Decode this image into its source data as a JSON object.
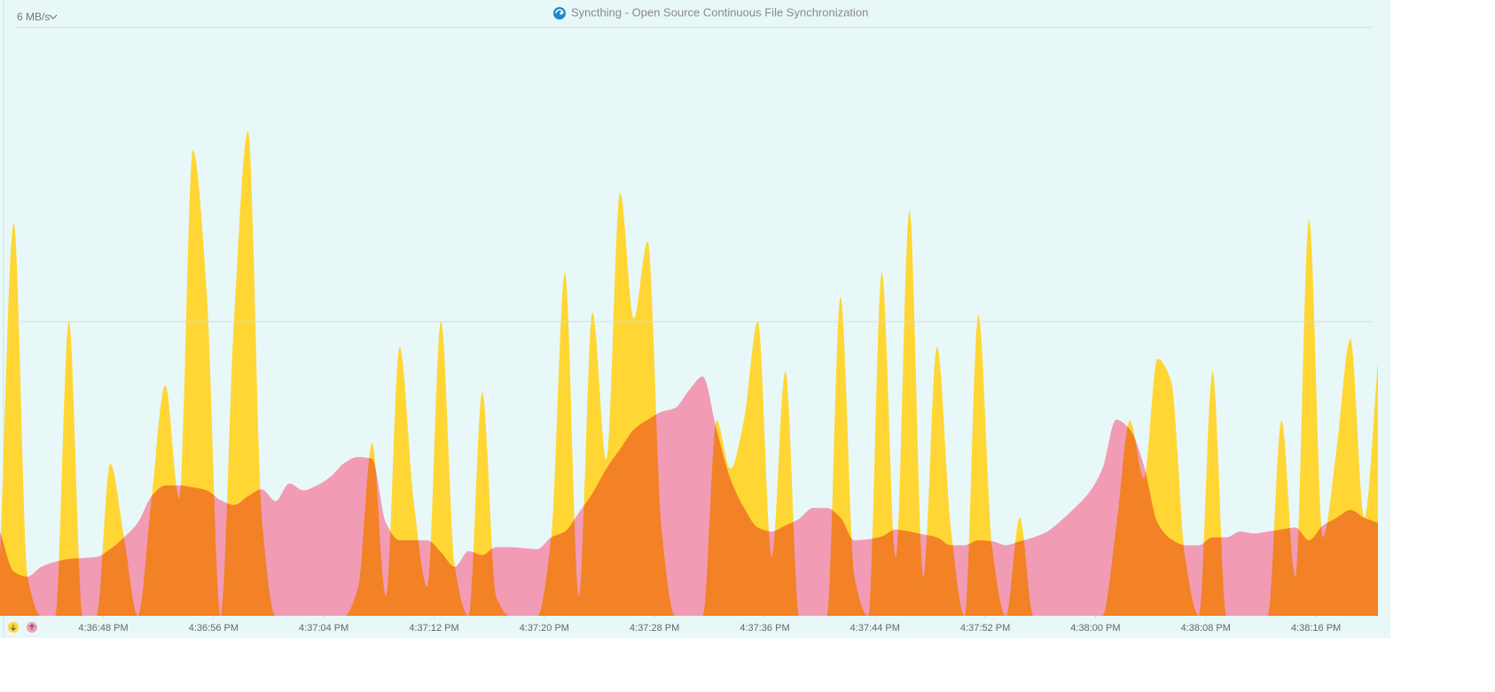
{
  "chart_data": {
    "type": "area",
    "title": "Syncthing - Open Source Continuous File Synchronization",
    "y_scale_label": "6 MB/s",
    "ylim": [
      0,
      6
    ],
    "grid_lines": [
      3,
      6
    ],
    "xlim": [
      59800.5,
      59901.4
    ],
    "xticks": [
      {
        "value": 59808,
        "label": "4:36:48 PM"
      },
      {
        "value": 59816,
        "label": "4:36:56 PM"
      },
      {
        "value": 59824,
        "label": "4:37:04 PM"
      },
      {
        "value": 59832,
        "label": "4:37:12 PM"
      },
      {
        "value": 59840,
        "label": "4:37:20 PM"
      },
      {
        "value": 59848,
        "label": "4:37:28 PM"
      },
      {
        "value": 59856,
        "label": "4:37:36 PM"
      },
      {
        "value": 59864,
        "label": "4:37:44 PM"
      },
      {
        "value": 59872,
        "label": "4:37:52 PM"
      },
      {
        "value": 59880,
        "label": "4:38:00 PM"
      },
      {
        "value": 59888,
        "label": "4:38:08 PM"
      },
      {
        "value": 59896,
        "label": "4:38:16 PM"
      }
    ],
    "x": [
      59800.5,
      59801.5,
      59802.5,
      59803.5,
      59804.5,
      59805.5,
      59806.5,
      59807.5,
      59808.5,
      59809.5,
      59810.5,
      59811.5,
      59812.5,
      59813.5,
      59814.5,
      59815.5,
      59816.5,
      59817.5,
      59818.5,
      59819.5,
      59820.5,
      59821.5,
      59822.5,
      59823.5,
      59824.5,
      59825.5,
      59826.5,
      59827.5,
      59828.5,
      59829.5,
      59830.5,
      59831.5,
      59832.5,
      59833.5,
      59834.5,
      59835.5,
      59836.5,
      59837.5,
      59838.5,
      59839.5,
      59840.5,
      59841.5,
      59842.5,
      59843.5,
      59844.5,
      59845.5,
      59846.5,
      59847.5,
      59848.5,
      59849.5,
      59850.5,
      59851.5,
      59852.5,
      59853.5,
      59854.5,
      59855.5,
      59856.5,
      59857.5,
      59858.5,
      59859.5,
      59860.5,
      59861.5,
      59862.5,
      59863.5,
      59864.5,
      59865.5,
      59866.5,
      59867.5,
      59868.5,
      59869.5,
      59870.5,
      59871.5,
      59872.5,
      59873.5,
      59874.5,
      59875.5,
      59876.5,
      59877.5,
      59878.5,
      59879.5,
      59880.5,
      59881.5,
      59882.5,
      59883.5,
      59884.5,
      59885.5,
      59886.5,
      59887.5,
      59888.5,
      59889.5,
      59890.5,
      59891.5,
      59892.5,
      59893.5,
      59894.5,
      59895.5,
      59896.5,
      59897.5,
      59898.5,
      59899.5,
      59900.5
    ],
    "series": [
      {
        "color": "#f29bb5",
        "values": [
          0.86,
          0.45,
          0.4,
          0.5,
          0.55,
          0.58,
          0.59,
          0.6,
          0.68,
          0.8,
          0.95,
          1.22,
          1.33,
          1.33,
          1.31,
          1.28,
          1.18,
          1.13,
          1.22,
          1.29,
          1.17,
          1.35,
          1.28,
          1.33,
          1.42,
          1.56,
          1.62,
          1.6,
          0.95,
          0.77,
          0.77,
          0.77,
          0.65,
          0.5,
          0.66,
          0.62,
          0.7,
          0.7,
          0.69,
          0.68,
          0.8,
          0.86,
          1.05,
          1.25,
          1.5,
          1.7,
          1.9,
          2.0,
          2.08,
          2.12,
          2.3,
          2.44,
          1.9,
          1.4,
          1.1,
          0.9,
          0.86,
          0.92,
          0.99,
          1.1,
          1.1,
          1.0,
          0.77,
          0.78,
          0.81,
          0.88,
          0.86,
          0.83,
          0.8,
          0.72,
          0.72,
          0.77,
          0.76,
          0.72,
          0.76,
          0.8,
          0.86,
          0.97,
          1.1,
          1.25,
          1.5,
          2.0,
          1.9,
          1.54,
          0.95,
          0.78,
          0.72,
          0.72,
          0.8,
          0.8,
          0.86,
          0.84,
          0.86,
          0.88,
          0.9,
          0.77,
          0.92,
          1.0,
          1.08,
          1.0,
          0.95
        ]
      },
      {
        "color": "#ffd633",
        "values": [
          0.6,
          4.0,
          0.4,
          0,
          0,
          3.0,
          0,
          0,
          1.55,
          0.8,
          0,
          1.2,
          2.35,
          1.2,
          4.75,
          3.3,
          0,
          3.07,
          4.94,
          1.0,
          0,
          0,
          0,
          0,
          0,
          0,
          0.3,
          1.76,
          0.2,
          2.74,
          1.2,
          0.3,
          3.0,
          0.5,
          0,
          2.28,
          0.2,
          0,
          0,
          0,
          0.8,
          3.5,
          0.2,
          3.09,
          1.6,
          4.31,
          3.03,
          3.82,
          0.9,
          0,
          0,
          0,
          1.99,
          1.5,
          2.0,
          3.0,
          0.6,
          2.49,
          0,
          0,
          0,
          3.25,
          0.4,
          0,
          3.5,
          0.6,
          4.13,
          0.4,
          2.74,
          0.9,
          0,
          3.07,
          0.7,
          0,
          1.0,
          0,
          0,
          0,
          0,
          0,
          0,
          0.9,
          1.99,
          1.4,
          2.62,
          2.39,
          0.6,
          0,
          2.49,
          0,
          0,
          0,
          0,
          1.99,
          0.4,
          4.04,
          0.8,
          1.7,
          2.82,
          1.0,
          2.59
        ]
      }
    ]
  }
}
